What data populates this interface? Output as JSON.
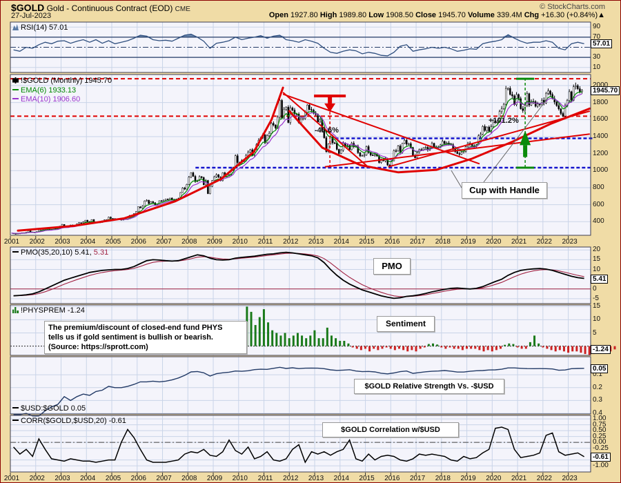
{
  "header": {
    "symbol": "$GOLD",
    "name": "Gold - Continuous Contract (EOD)",
    "exchange": "CME",
    "date": "27-Jul-2023",
    "copyright": "© StockCharts.com",
    "quote": {
      "o_l": "Open",
      "o": "1927.80",
      "h_l": "High",
      "h": "1989.80",
      "l_l": "Low",
      "l": "1908.50",
      "c_l": "Close",
      "c": "1945.70",
      "v_l": "Volume",
      "v": "339.4M",
      "chg_l": "Chg",
      "chg": "+16.30 (+0.84%)",
      "arrow": "▲"
    }
  },
  "colors": {
    "background": "#F0DCA6",
    "panel": "#F4F4FB",
    "grid": "#C9D4E8",
    "red": "#E00000",
    "blue": "#1414CC",
    "green": "#0A8A0A",
    "maroon": "#A02040",
    "rsi_fill": "#6B87AD",
    "rsi_line": "#2E4E7E",
    "ema6": "#008800",
    "ema10": "#9933CC",
    "bar_up": "#1A7A1A",
    "bar_down": "#CC2222"
  },
  "x_years": [
    2001,
    2002,
    2003,
    2004,
    2005,
    2006,
    2007,
    2008,
    2009,
    2010,
    2011,
    2012,
    2013,
    2014,
    2015,
    2016,
    2017,
    2018,
    2019,
    2020,
    2021,
    2022,
    2023
  ],
  "chart_data": [
    {
      "id": "rsi",
      "type": "line",
      "legend": "RSI(14) 57.01",
      "value_label": "57.01",
      "overbought": 70,
      "oversold": 30,
      "midline": 50,
      "ylim": [
        0,
        100
      ],
      "yticks": [
        {
          "v": 90,
          "label": "90"
        },
        {
          "v": 70,
          "label": "70"
        },
        {
          "v": 30,
          "label": "30"
        },
        {
          "v": 10,
          "label": "10"
        }
      ],
      "start": 2001.125,
      "step": 0.25,
      "values": [
        45,
        42,
        50,
        48,
        55,
        60,
        57,
        62,
        63,
        58,
        62,
        65,
        60,
        65,
        58,
        63,
        57,
        60,
        63,
        68,
        74,
        72,
        65,
        63,
        64,
        62,
        68,
        74,
        76,
        70,
        62,
        48,
        58,
        60,
        63,
        70,
        65,
        68,
        70,
        73,
        68,
        72,
        74,
        65,
        63,
        60,
        65,
        62,
        58,
        48,
        40,
        38,
        42,
        45,
        43,
        37,
        40,
        38,
        34,
        33,
        40,
        52,
        55,
        42,
        45,
        47,
        50,
        48,
        50,
        47,
        42,
        44,
        47,
        46,
        57,
        60,
        62,
        65,
        75,
        68,
        62,
        58,
        60,
        60,
        63,
        60,
        48,
        45,
        57,
        60,
        57
      ]
    },
    {
      "id": "price",
      "type": "candlestick",
      "legend": "!$GOLD (Monthly) 1945.70",
      "ema6_legend": "EMA(6) 1933.13",
      "ema10_legend": "EMA(10) 1906.60",
      "value_label": "1945.70",
      "ylim": [
        240,
        2130
      ],
      "yticks": [
        {
          "v": 2000,
          "label": "2000"
        },
        {
          "v": 1800,
          "label": "1800"
        },
        {
          "v": 1600,
          "label": "1600"
        },
        {
          "v": 1400,
          "label": "1400"
        },
        {
          "v": 1200,
          "label": "1200"
        },
        {
          "v": 1000,
          "label": "1000"
        },
        {
          "v": 800,
          "label": "800"
        },
        {
          "v": 600,
          "label": "600"
        },
        {
          "v": 400,
          "label": "400"
        }
      ],
      "start": 2001.042,
      "step": 0.08333,
      "closes": [
        265,
        260,
        258,
        263,
        265,
        270,
        266,
        274,
        293,
        280,
        275,
        277,
        282,
        297,
        301,
        308,
        327,
        313,
        304,
        310,
        320,
        317,
        319,
        348,
        368,
        350,
        336,
        340,
        361,
        346,
        355,
        375,
        388,
        386,
        398,
        417,
        400,
        396,
        424,
        388,
        393,
        395,
        391,
        410,
        420,
        425,
        453,
        438,
        422,
        435,
        428,
        435,
        419,
        437,
        429,
        433,
        473,
        470,
        495,
        517,
        575,
        561,
        582,
        644,
        653,
        613,
        634,
        623,
        599,
        603,
        646,
        638,
        651,
        664,
        661,
        677,
        659,
        650,
        665,
        672,
        743,
        795,
        783,
        838,
        923,
        975,
        933,
        871,
        885,
        930,
        918,
        833,
        884,
        730,
        816,
        884,
        928,
        952,
        922,
        883,
        975,
        934,
        953,
        953,
        1008,
        1040,
        1175,
        1096,
        1083,
        1118,
        1114,
        1180,
        1215,
        1245,
        1181,
        1248,
        1307,
        1357,
        1386,
        1421,
        1327,
        1411,
        1439,
        1556,
        1536,
        1502,
        1628,
        1826,
        1620,
        1722,
        1746,
        1566,
        1737,
        1711,
        1668,
        1664,
        1562,
        1604,
        1614,
        1685,
        1771,
        1719,
        1712,
        1675,
        1662,
        1572,
        1595,
        1472,
        1387,
        1224,
        1313,
        1396,
        1327,
        1323,
        1250,
        1202,
        1240,
        1321,
        1283,
        1295,
        1246,
        1322,
        1281,
        1287,
        1211,
        1173,
        1175,
        1184,
        1283,
        1213,
        1183,
        1182,
        1189,
        1172,
        1095,
        1135,
        1115,
        1141,
        1065,
        1060,
        1116,
        1234,
        1232,
        1290,
        1215,
        1320,
        1357,
        1311,
        1317,
        1272,
        1178,
        1152,
        1211,
        1248,
        1247,
        1268,
        1275,
        1242,
        1268,
        1321,
        1280,
        1271,
        1273,
        1303,
        1345,
        1318,
        1325,
        1315,
        1305,
        1250,
        1223,
        1201,
        1192,
        1215,
        1226,
        1281,
        1321,
        1313,
        1292,
        1283,
        1305,
        1409,
        1427,
        1520,
        1472,
        1512,
        1464,
        1517,
        1587,
        1566,
        1583,
        1694,
        1728,
        1780,
        1966,
        1967,
        1895,
        1879,
        1776,
        1895,
        1847,
        1728,
        1707,
        1767,
        1905,
        1770,
        1814,
        1812,
        1757,
        1783,
        1774,
        1828,
        1796,
        1909,
        1937,
        1896,
        1848,
        1807,
        1765,
        1726,
        1672,
        1640,
        1759,
        1826,
        1928,
        1826,
        1986,
        1999,
        1963,
        1929,
        1945.7
      ],
      "annotations": {
        "drop_label": "-46.6%",
        "gain_label": "+101.2%",
        "pattern_label": "Cup with Handle",
        "red_hlines": [
          2080,
          1640
        ],
        "blue_hlines": [
          {
            "v": 1380,
            "t0": 2013.8,
            "t1": 2023.95
          },
          {
            "v": 1035,
            "t0": 2008.3,
            "t1": 2023.95
          }
        ],
        "red_vline": {
          "t": 2013.6,
          "v0": 1035,
          "v1": 1878
        },
        "green_vline": {
          "t": 2021.3,
          "v0": 1035,
          "v1": 2080
        },
        "curves": [
          {
            "pts": [
              [
                2001.3,
                295
              ],
              [
                2003.5,
                350
              ],
              [
                2005.5,
                440
              ],
              [
                2007.5,
                640
              ],
              [
                2009.3,
                900
              ],
              [
                2010.6,
                1220
              ],
              [
                2011.3,
                1600
              ],
              [
                2011.75,
                1975
              ]
            ]
          },
          {
            "pts": [
              [
                2012.0,
                1700
              ],
              [
                2013.3,
                1270
              ],
              [
                2014.8,
                1065
              ],
              [
                2016.3,
                980
              ],
              [
                2017.8,
                1010
              ],
              [
                2019.2,
                1140
              ],
              [
                2020.8,
                1340
              ],
              [
                2022.3,
                1550
              ],
              [
                2023.85,
                1730
              ]
            ]
          }
        ],
        "trendlines": [
          {
            "pts": [
              [
                2011.75,
                1920
              ],
              [
                2015.1,
                1045
              ]
            ]
          },
          {
            "pts": [
              [
                2011.75,
                1900
              ],
              [
                2019.5,
                1080
              ]
            ]
          },
          {
            "pts": [
              [
                2015.9,
                1045
              ],
              [
                2023.85,
                1700
              ]
            ]
          },
          {
            "pts": [
              [
                2013.4,
                1045
              ],
              [
                2023.85,
                1430
              ]
            ]
          }
        ]
      }
    },
    {
      "id": "pmo",
      "type": "line",
      "legend": "PMO(35,20,10) 5.41,",
      "signal_legend": "5.31",
      "box": "PMO",
      "value_label": "5.41",
      "ylim": [
        -7.5,
        21.5
      ],
      "yticks": [
        {
          "v": 20,
          "label": "20"
        },
        {
          "v": 15,
          "label": "15"
        },
        {
          "v": 10,
          "label": "10"
        },
        {
          "v": 0,
          "label": "0"
        },
        {
          "v": -5,
          "label": "-5"
        }
      ],
      "start": 2001.125,
      "step": 0.25,
      "values": [
        -3.5,
        -3.3,
        -3,
        -2.5,
        -1.5,
        0,
        1.5,
        3,
        4.5,
        5.5,
        6.5,
        7.5,
        8.5,
        9,
        9.5,
        9.8,
        10,
        10,
        10.5,
        11.5,
        13,
        14.5,
        15,
        14.8,
        14.5,
        14.3,
        14.5,
        15.5,
        16.5,
        17.5,
        17,
        15.8,
        15,
        14.8,
        15,
        15.8,
        16.2,
        16.5,
        16.8,
        17.3,
        17.8,
        18,
        18.5,
        18.8,
        18.5,
        18,
        17.5,
        17,
        16,
        13.5,
        10,
        7,
        4.5,
        2.5,
        1,
        -0.5,
        -1.5,
        -2.5,
        -3.5,
        -4.2,
        -4.8,
        -4.5,
        -3.8,
        -3.5,
        -3,
        -2.3,
        -1.5,
        -0.8,
        -0.2,
        0.3,
        0.5,
        0.2,
        0,
        0.3,
        1.2,
        2.5,
        3.8,
        5,
        7,
        8.5,
        9.5,
        10,
        10.3,
        10.5,
        10.2,
        9.5,
        8.5,
        7.5,
        6.5,
        5.8,
        5.41
      ]
    },
    {
      "id": "sentiment",
      "type": "bar",
      "legend": "!PHYSPREM -1.24",
      "box": "Sentiment",
      "value_label": "-1.24",
      "note": [
        "The premium/discount of closed-end fund PHYS",
        "tells us if gold sentiment is bullish or bearish.",
        "(Source: https://sprott.com)"
      ],
      "ylim": [
        -3.5,
        15.6
      ],
      "yticks": [
        {
          "v": 15,
          "label": "15"
        },
        {
          "v": 10,
          "label": "10"
        },
        {
          "v": 5,
          "label": "5"
        }
      ],
      "start": 2010.33,
      "step": 0.1667,
      "values": [
        15,
        13,
        8,
        11,
        14,
        9,
        6,
        5,
        4,
        5,
        3,
        4,
        5,
        4,
        3,
        4,
        6,
        3,
        3,
        7,
        4,
        3,
        2,
        2,
        1,
        -0.5,
        -1,
        -1.5,
        -1,
        -2,
        -1,
        -1.5,
        -1,
        -0.5,
        -1,
        -1.5,
        -1,
        -1.5,
        -2,
        -1.5,
        -2,
        -1,
        -0.5,
        0.8,
        1,
        0.6,
        -0.5,
        -1,
        -0.5,
        -1,
        -1,
        -1.5,
        -1,
        -1,
        -1,
        -1.5,
        -2,
        -1.5,
        -2,
        -1.5,
        -1,
        0.5,
        1,
        0.8,
        -0.5,
        -1,
        -1,
        1.5,
        4,
        1,
        -0.5,
        -1,
        -1.5,
        -2,
        -1.5,
        -2,
        -2.5,
        -2,
        -2,
        -2.5,
        -3,
        -3.3,
        -3,
        -2.5,
        -2,
        -2.5,
        -2,
        -1.24
      ]
    },
    {
      "id": "usdgold",
      "type": "line",
      "inverted": true,
      "legend": "$USD:$GOLD 0.05",
      "box": "$GOLD Relative Strength Vs. -$USD",
      "value_label": "0.05",
      "ylim": [
        -0.04,
        0.405
      ],
      "yticks": [
        {
          "v": 0.1,
          "label": "0.1"
        },
        {
          "v": 0.2,
          "label": "0.2"
        },
        {
          "v": 0.3,
          "label": "0.3"
        },
        {
          "v": 0.4,
          "label": "0.4"
        }
      ],
      "start": 2001.125,
      "step": 0.25,
      "values": [
        0.41,
        0.41,
        0.4,
        0.42,
        0.42,
        0.38,
        0.35,
        0.33,
        0.27,
        0.3,
        0.27,
        0.25,
        0.26,
        0.23,
        0.22,
        0.19,
        0.2,
        0.2,
        0.19,
        0.175,
        0.155,
        0.155,
        0.15,
        0.155,
        0.15,
        0.14,
        0.125,
        0.105,
        0.078,
        0.075,
        0.085,
        0.11,
        0.092,
        0.085,
        0.08,
        0.071,
        0.073,
        0.069,
        0.06,
        0.057,
        0.058,
        0.05,
        0.042,
        0.051,
        0.046,
        0.052,
        0.049,
        0.048,
        0.049,
        0.053,
        0.062,
        0.066,
        0.064,
        0.061,
        0.071,
        0.076,
        0.074,
        0.078,
        0.088,
        0.093,
        0.086,
        0.076,
        0.071,
        0.089,
        0.083,
        0.077,
        0.073,
        0.071,
        0.067,
        0.072,
        0.079,
        0.079,
        0.073,
        0.069,
        0.067,
        0.063,
        0.062,
        0.057,
        0.047,
        0.047,
        0.05,
        0.052,
        0.053,
        0.052,
        0.053,
        0.055,
        0.065,
        0.063,
        0.053,
        0.051,
        0.05
      ]
    },
    {
      "id": "corr",
      "type": "line",
      "legend": "CORR($GOLD,$USD,20) -0.61",
      "box": "$GOLD Correlation w/$USD",
      "value_label": "-0.61",
      "ylim": [
        -1.26,
        1.15
      ],
      "yticks": [
        {
          "v": 1,
          "label": "1.00"
        },
        {
          "v": 0.75,
          "label": "0.75"
        },
        {
          "v": 0.5,
          "label": "0.50"
        },
        {
          "v": 0.25,
          "label": "0.25"
        },
        {
          "v": 0,
          "label": "0.00"
        },
        {
          "v": -0.25,
          "label": "-0.25"
        },
        {
          "v": -0.75,
          "label": "-0.75"
        },
        {
          "v": -1,
          "label": "-1.00"
        }
      ],
      "start": 2001.125,
      "step": 0.25,
      "values": [
        -0.2,
        -0.5,
        -0.3,
        -0.6,
        0.15,
        -0.3,
        -0.7,
        -0.75,
        -0.8,
        -0.7,
        -0.75,
        -0.8,
        -0.8,
        -0.85,
        -0.8,
        -0.75,
        -0.75,
        0,
        0.55,
        0.2,
        -0.3,
        -0.75,
        -0.85,
        -0.85,
        -0.85,
        -0.8,
        -0.75,
        -0.5,
        -0.4,
        -0.45,
        -0.3,
        -0.55,
        -0.6,
        -0.4,
        0.1,
        -0.35,
        -0.5,
        -0.2,
        -0.7,
        -0.6,
        -0.4,
        -0.75,
        -0.8,
        -0.7,
        -0.3,
        -0.1,
        -0.85,
        -0.4,
        -0.5,
        -0.4,
        -0.55,
        -0.4,
        -0.3,
        0.1,
        -0.7,
        -0.8,
        -0.5,
        -0.75,
        -0.6,
        -0.55,
        -0.6,
        -0.75,
        -0.8,
        -0.7,
        -0.5,
        -0.55,
        -0.5,
        -0.55,
        -0.6,
        -0.75,
        -0.8,
        -0.6,
        -0.7,
        -0.65,
        -0.45,
        -0.3,
        0.6,
        0.65,
        0.55,
        -0.3,
        -0.65,
        -0.6,
        -0.55,
        -0.45,
        0.3,
        0.4,
        -0.4,
        -0.55,
        -0.5,
        -0.45,
        -0.61
      ]
    }
  ]
}
